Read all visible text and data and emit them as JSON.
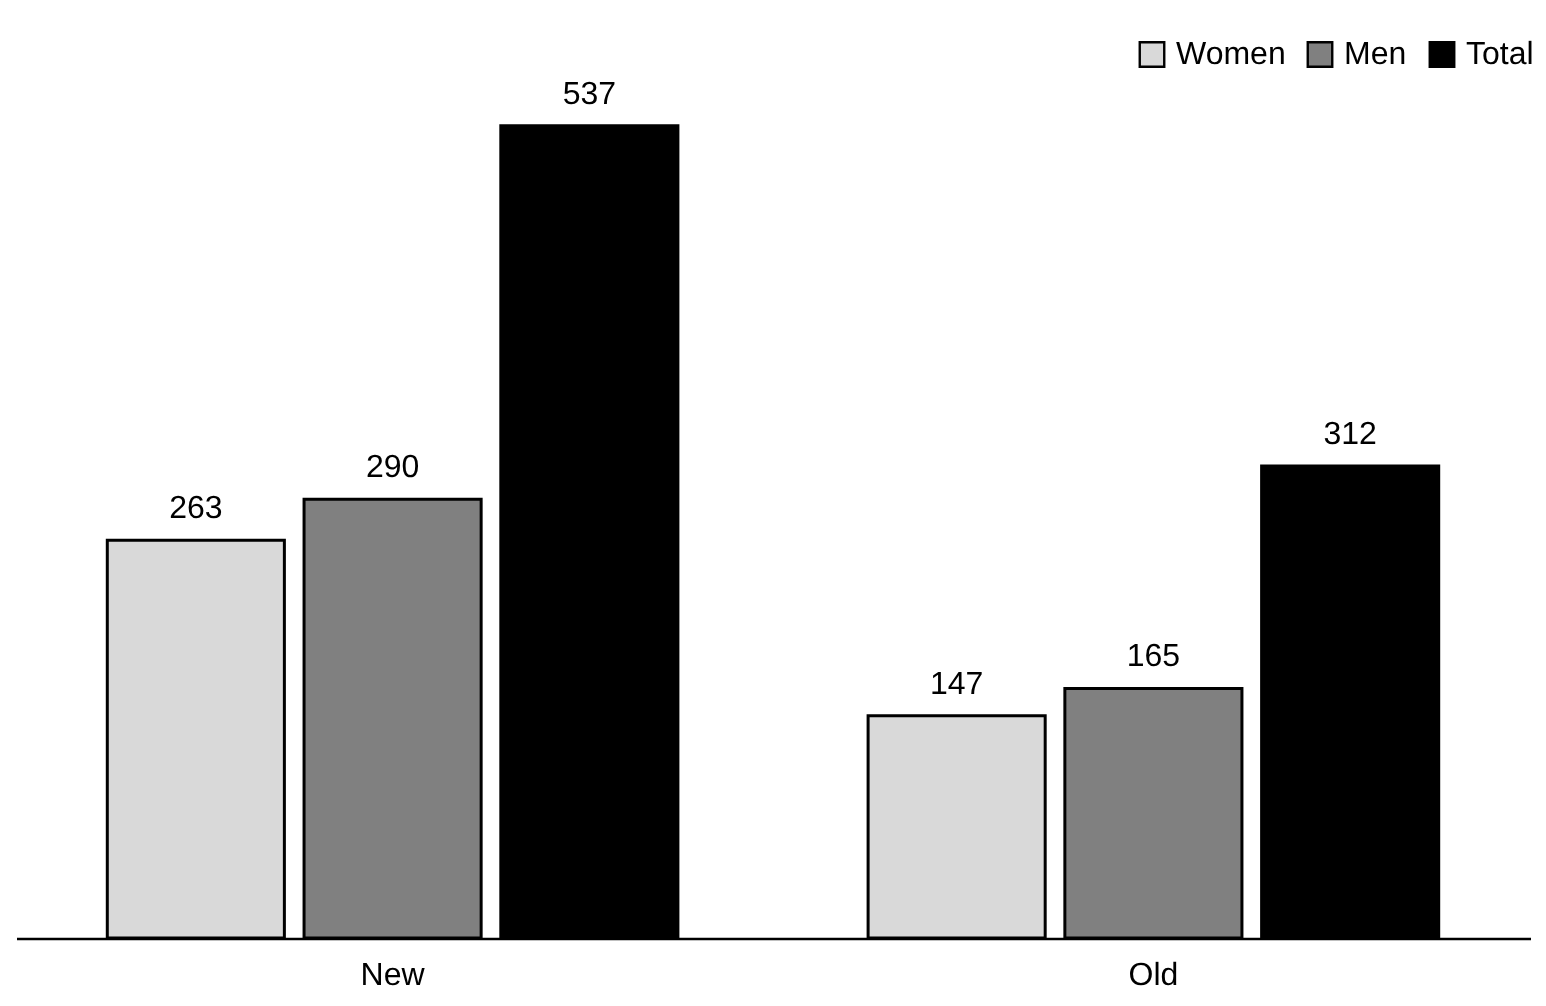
{
  "chart_data": {
    "type": "bar",
    "categories": [
      "New",
      "Old"
    ],
    "series": [
      {
        "name": "Women",
        "color": "#d9d9d9",
        "values": [
          263,
          147
        ]
      },
      {
        "name": "Men",
        "color": "#808080",
        "values": [
          290,
          165
        ]
      },
      {
        "name": "Total",
        "color": "#000000",
        "values": [
          537,
          312
        ]
      }
    ],
    "data_labels": true,
    "legend": "top right"
  }
}
